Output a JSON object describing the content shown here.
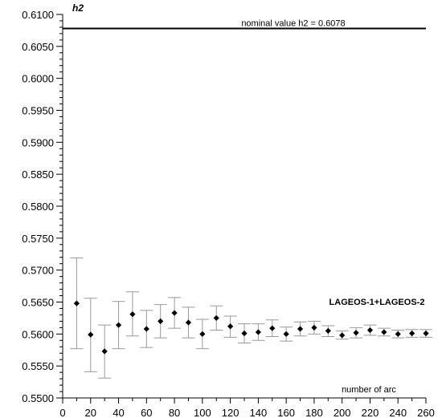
{
  "chart_data": {
    "type": "scatter",
    "title": "",
    "xlabel": "number of arc",
    "ylabel": "h2",
    "xlim": [
      0,
      260
    ],
    "ylim": [
      0.55,
      0.61
    ],
    "x_ticks": [
      "0",
      "20",
      "40",
      "60",
      "80",
      "100",
      "120",
      "140",
      "160",
      "180",
      "200",
      "220",
      "240",
      "260"
    ],
    "y_ticks": [
      "0.5500",
      "0.5550",
      "0.5600",
      "0.5650",
      "0.5700",
      "0.5750",
      "0.5800",
      "0.5850",
      "0.5900",
      "0.5950",
      "0.6000",
      "0.6050",
      "0.6100"
    ],
    "grid": false,
    "reference_line": {
      "label": "nominal value h2 = 0.6078",
      "value": 0.6078
    },
    "series": [
      {
        "name": "LAGEOS-1+LAGEOS-2",
        "x": [
          10,
          20,
          30,
          40,
          50,
          60,
          70,
          80,
          90,
          100,
          110,
          120,
          130,
          140,
          150,
          160,
          170,
          180,
          190,
          200,
          210,
          220,
          230,
          240,
          250,
          260
        ],
        "y": [
          0.5648,
          0.5599,
          0.5573,
          0.5614,
          0.5631,
          0.5608,
          0.562,
          0.5633,
          0.5618,
          0.56,
          0.5625,
          0.5612,
          0.5601,
          0.5603,
          0.5609,
          0.56,
          0.5608,
          0.561,
          0.5605,
          0.5598,
          0.5602,
          0.5606,
          0.5603,
          0.56,
          0.5601,
          0.5601
        ],
        "y_low": [
          0.5577,
          0.5541,
          0.5531,
          0.5577,
          0.5597,
          0.5579,
          0.5594,
          0.5609,
          0.5594,
          0.5577,
          0.5606,
          0.5595,
          0.5586,
          0.559,
          0.5596,
          0.5589,
          0.5597,
          0.56,
          0.5596,
          0.5592,
          0.5594,
          0.5598,
          0.5597,
          0.5594,
          0.5595,
          0.5595
        ],
        "y_high": [
          0.5719,
          0.5656,
          0.5614,
          0.5651,
          0.5666,
          0.5637,
          0.5646,
          0.5657,
          0.5642,
          0.5623,
          0.5644,
          0.5628,
          0.5616,
          0.5616,
          0.5622,
          0.5611,
          0.5619,
          0.562,
          0.5613,
          0.5605,
          0.561,
          0.5614,
          0.5609,
          0.5606,
          0.5607,
          0.5607
        ],
        "color": "#000000",
        "errorbar_color": "#999999"
      }
    ]
  }
}
